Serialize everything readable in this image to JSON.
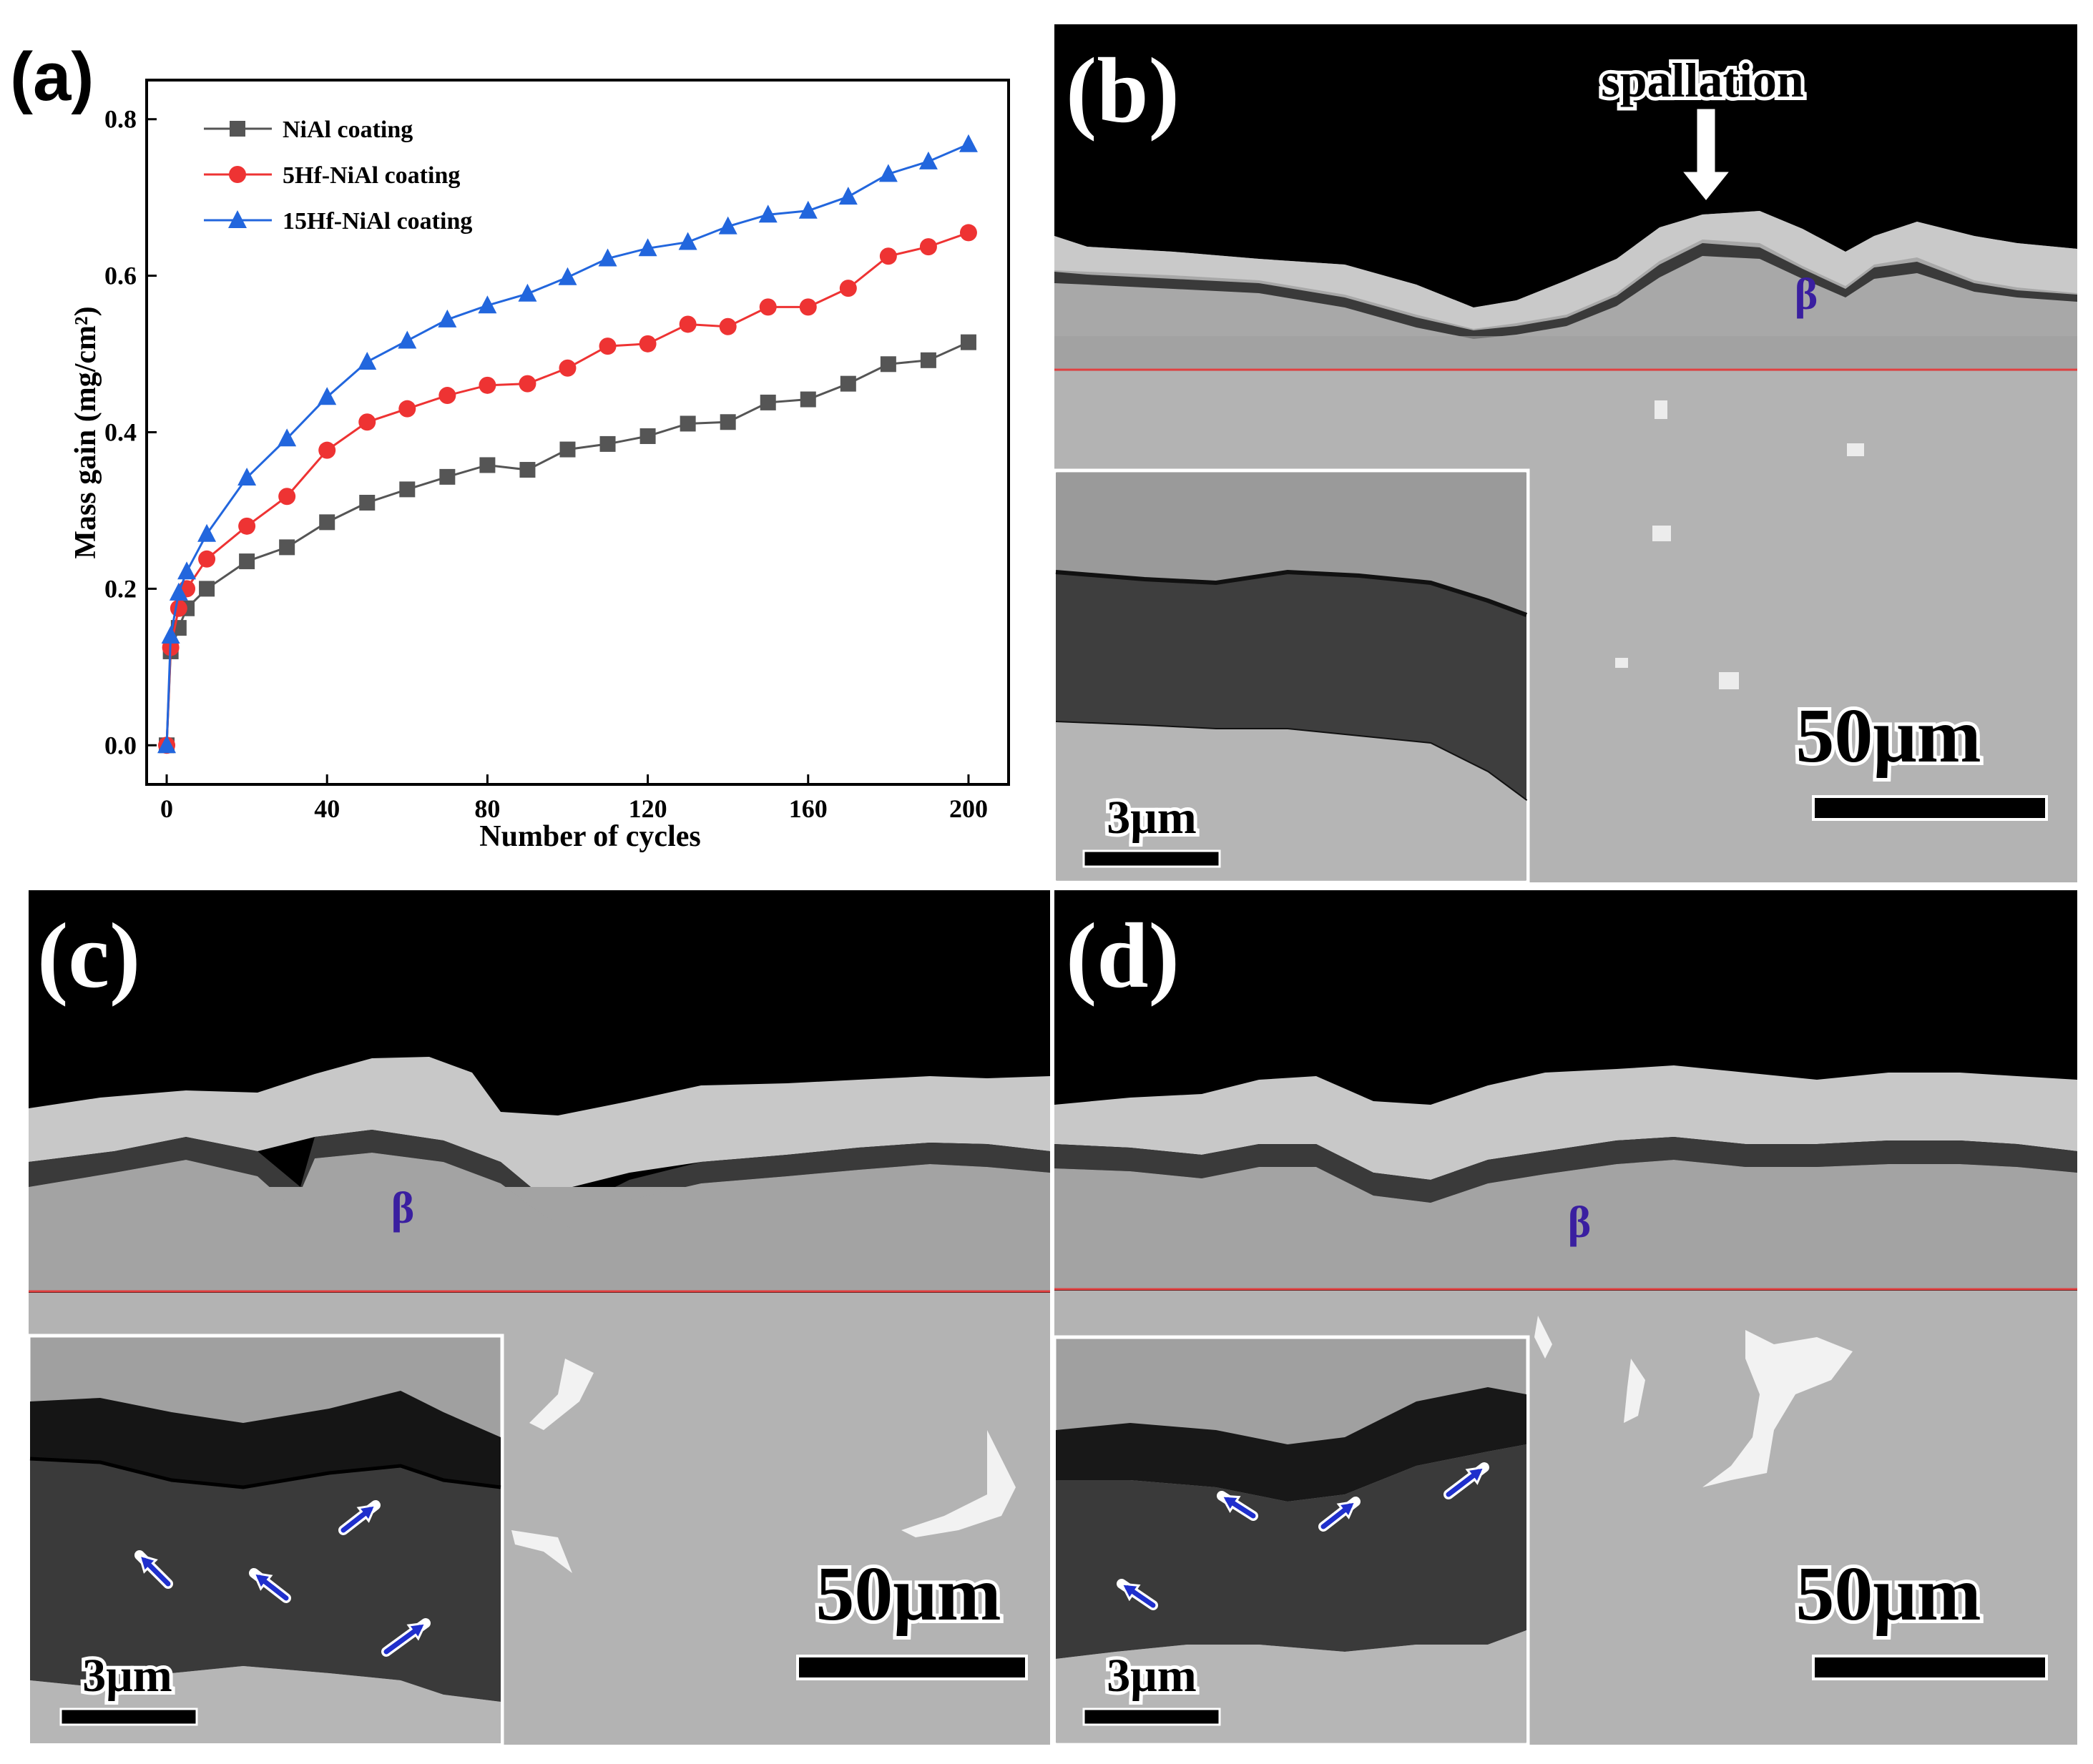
{
  "panels": {
    "a": {
      "label": "(a)"
    },
    "b": {
      "label": "(b)",
      "annotation": "spallation",
      "phase": "β",
      "scale_main": "50μm",
      "scale_inset": "3μm"
    },
    "c": {
      "label": "(c)",
      "phase": "β",
      "scale_main": "50μm",
      "scale_inset": "3μm"
    },
    "d": {
      "label": "(d)",
      "phase": "β",
      "scale_main": "50μm",
      "scale_inset": "3μm"
    }
  },
  "colors": {
    "series1": "#555555",
    "series2": "#ee3333",
    "series3": "#2266dd",
    "interface_line": "#e04040",
    "arrow": "#1f2fcc"
  },
  "chart_data": {
    "type": "line",
    "title": "",
    "xlabel": "Number of cycles",
    "ylabel": "Mass gain (mg/cm²)",
    "xlim": [
      -5,
      210
    ],
    "ylim": [
      -0.05,
      0.85
    ],
    "xticks": [
      0,
      40,
      80,
      120,
      160,
      200
    ],
    "yticks": [
      0.0,
      0.2,
      0.4,
      0.6,
      0.8
    ],
    "xtick_labels": [
      "0",
      "40",
      "80",
      "120",
      "160",
      "200"
    ],
    "ytick_labels": [
      "0.0",
      "0.2",
      "0.4",
      "0.6",
      "0.8"
    ],
    "legend_position": "top-left",
    "series": [
      {
        "name": "NiAl coating",
        "marker": "square",
        "color": "#555555",
        "x": [
          0,
          1,
          3,
          5,
          10,
          20,
          30,
          40,
          50,
          60,
          70,
          80,
          90,
          100,
          110,
          120,
          130,
          140,
          150,
          160,
          170,
          180,
          190,
          200
        ],
        "y": [
          0.0,
          0.12,
          0.15,
          0.175,
          0.2,
          0.235,
          0.253,
          0.285,
          0.31,
          0.327,
          0.343,
          0.358,
          0.352,
          0.378,
          0.385,
          0.395,
          0.411,
          0.413,
          0.438,
          0.442,
          0.462,
          0.487,
          0.492,
          0.515
        ]
      },
      {
        "name": "5Hf-NiAl coating",
        "marker": "circle",
        "color": "#ee3333",
        "x": [
          0,
          1,
          3,
          5,
          10,
          20,
          30,
          40,
          50,
          60,
          70,
          80,
          90,
          100,
          110,
          120,
          130,
          140,
          150,
          160,
          170,
          180,
          190,
          200
        ],
        "y": [
          0.0,
          0.125,
          0.175,
          0.2,
          0.238,
          0.28,
          0.318,
          0.377,
          0.413,
          0.43,
          0.447,
          0.46,
          0.462,
          0.482,
          0.51,
          0.513,
          0.538,
          0.535,
          0.56,
          0.56,
          0.584,
          0.625,
          0.637,
          0.655
        ]
      },
      {
        "name": "15Hf-NiAl coating",
        "marker": "triangle",
        "color": "#2266dd",
        "x": [
          0,
          1,
          3,
          5,
          10,
          20,
          30,
          40,
          50,
          60,
          70,
          80,
          90,
          100,
          110,
          120,
          130,
          140,
          150,
          160,
          170,
          180,
          190,
          200
        ],
        "y": [
          0.0,
          0.14,
          0.195,
          0.222,
          0.27,
          0.342,
          0.392,
          0.445,
          0.49,
          0.517,
          0.544,
          0.562,
          0.577,
          0.598,
          0.622,
          0.635,
          0.643,
          0.663,
          0.678,
          0.683,
          0.701,
          0.73,
          0.746,
          0.768
        ]
      }
    ]
  }
}
